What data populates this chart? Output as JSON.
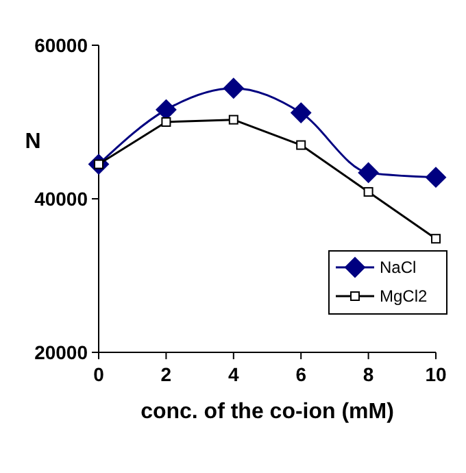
{
  "chart_data": {
    "type": "line",
    "xlabel": "conc. of the co-ion (mM)",
    "ylabel": "N",
    "x": [
      0,
      2,
      4,
      6,
      8,
      10
    ],
    "series": [
      {
        "name": "NaCl",
        "color": "#000080",
        "marker": "diamond",
        "values": [
          44500,
          51600,
          54400,
          51200,
          43400,
          42800
        ]
      },
      {
        "name": "MgCl2",
        "color": "#000000",
        "marker": "square",
        "values": [
          44500,
          50000,
          50300,
          47000,
          40900,
          34800
        ]
      }
    ],
    "xlim": [
      0,
      10
    ],
    "xticks": [
      0,
      2,
      4,
      6,
      8,
      10
    ],
    "ylim": [
      20000,
      60000
    ],
    "yticks": [
      20000,
      40000,
      60000
    ],
    "grid": false,
    "legend": "bottom right"
  }
}
